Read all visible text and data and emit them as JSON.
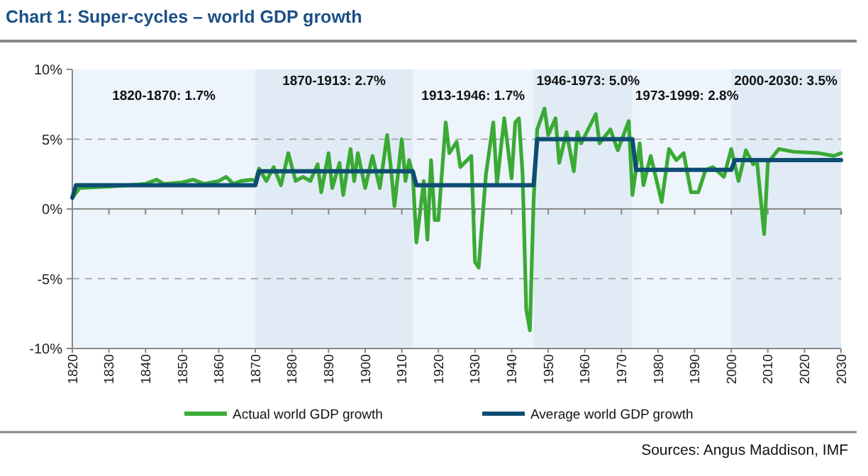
{
  "chart_data": {
    "type": "line",
    "title": "Chart 1: Super-cycles – world GDP growth",
    "xlim": [
      1820,
      2030
    ],
    "xticks": [
      1820,
      1830,
      1840,
      1850,
      1860,
      1870,
      1880,
      1890,
      1900,
      1910,
      1920,
      1930,
      1940,
      1950,
      1960,
      1970,
      1980,
      1990,
      2000,
      2010,
      2020,
      2030
    ],
    "ylim": [
      -10,
      10
    ],
    "yticks": [
      {
        "value": -10,
        "label": "-10%"
      },
      {
        "value": -5,
        "label": "-5%"
      },
      {
        "value": 0,
        "label": "0%"
      },
      {
        "value": 5,
        "label": "5%"
      },
      {
        "value": 10,
        "label": "10%"
      }
    ],
    "grid": "y",
    "legend": "bottom",
    "line_style": "solid",
    "marker": "none",
    "bands": [
      {
        "axis": "x",
        "from": 1820,
        "to": 1870,
        "label": "1820-1870: 1.7%",
        "color": "#eef4fb"
      },
      {
        "axis": "x",
        "from": 1870,
        "to": 1913,
        "label": "1870-1913: 2.7%",
        "color": "#e1ebf6"
      },
      {
        "axis": "x",
        "from": 1913,
        "to": 1946,
        "label": "1913-1946: 1.7%",
        "color": "#eef4fb"
      },
      {
        "axis": "x",
        "from": 1946,
        "to": 1973,
        "label": "1946-1973: 5.0%",
        "color": "#e1ebf6"
      },
      {
        "axis": "x",
        "from": 1973,
        "to": 2000,
        "label": "1973-1999: 2.8%",
        "color": "#eef4fb"
      },
      {
        "axis": "x",
        "from": 2000,
        "to": 2030,
        "label": "2000-2030: 3.5%",
        "color": "#e1ebf6"
      }
    ],
    "series": [
      {
        "name": "Actual world GDP growth",
        "color": "#3aaa35",
        "x": [
          1820,
          1822,
          1830,
          1840,
          1843,
          1845,
          1850,
          1853,
          1856,
          1860,
          1862,
          1864,
          1866,
          1869,
          1870,
          1871,
          1873,
          1875,
          1877,
          1879,
          1881,
          1883,
          1885,
          1887,
          1888,
          1890,
          1891,
          1893,
          1894,
          1896,
          1897,
          1898,
          1900,
          1902,
          1904,
          1906,
          1907,
          1908,
          1910,
          1911,
          1912,
          1913,
          1914,
          1916,
          1917,
          1918,
          1919,
          1920,
          1922,
          1923,
          1925,
          1926,
          1929,
          1930,
          1931,
          1933,
          1935,
          1936,
          1938,
          1940,
          1941,
          1942,
          1943,
          1944,
          1945,
          1946,
          1947,
          1949,
          1950,
          1952,
          1953,
          1955,
          1957,
          1958,
          1959,
          1963,
          1964,
          1967,
          1969,
          1972,
          1973,
          1975,
          1976,
          1978,
          1981,
          1983,
          1985,
          1987,
          1989,
          1991,
          1993,
          1995,
          1998,
          2000,
          2002,
          2004,
          2006,
          2007,
          2009,
          2010,
          2013,
          2017,
          2024,
          2028,
          2030
        ],
        "values": [
          0.8,
          1.5,
          1.6,
          1.8,
          2.1,
          1.8,
          1.9,
          2.1,
          1.8,
          2.0,
          2.3,
          1.8,
          2.0,
          2.1,
          2.0,
          2.9,
          2.0,
          3.0,
          1.7,
          4.0,
          2.0,
          2.3,
          2.0,
          3.2,
          1.2,
          4.0,
          1.5,
          3.3,
          1.0,
          4.3,
          2.0,
          4.0,
          1.5,
          3.8,
          1.5,
          5.3,
          3.0,
          0.2,
          5.0,
          2.0,
          3.5,
          2.5,
          -2.4,
          2.0,
          -2.2,
          3.5,
          -0.8,
          -0.8,
          6.2,
          4.0,
          4.8,
          3.0,
          3.8,
          -3.8,
          -4.2,
          2.5,
          6.2,
          1.8,
          6.5,
          2.2,
          6.2,
          6.5,
          2.5,
          -7.2,
          -8.7,
          0.5,
          5.7,
          7.2,
          5.3,
          6.5,
          3.3,
          5.5,
          2.7,
          5.5,
          4.7,
          6.8,
          4.7,
          5.7,
          4.2,
          6.3,
          1.0,
          4.7,
          1.7,
          3.8,
          0.5,
          4.3,
          3.5,
          4.0,
          1.2,
          1.2,
          2.8,
          3.0,
          2.3,
          4.3,
          2.0,
          4.2,
          3.2,
          3.5,
          -1.8,
          3.3,
          4.3,
          4.1,
          4.0,
          3.8,
          4.0
        ]
      },
      {
        "name": "Average world GDP growth",
        "color": "#0e4d72",
        "x": [
          1820,
          1821,
          1870,
          1871,
          1913,
          1914,
          1946,
          1947,
          1973,
          1974,
          2000,
          2001,
          2030
        ],
        "values": [
          0.8,
          1.7,
          1.7,
          2.7,
          2.7,
          1.7,
          1.7,
          5.0,
          5.0,
          2.8,
          2.8,
          3.5,
          3.5
        ]
      }
    ],
    "annotations": [
      "Sources: Angus Maddison, IMF"
    ]
  }
}
